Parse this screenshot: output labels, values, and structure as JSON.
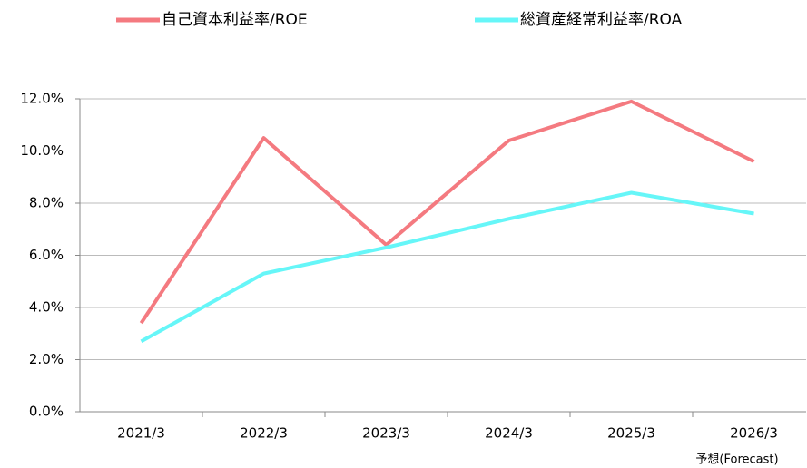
{
  "chart_data": {
    "type": "line",
    "categories": [
      "2021/3",
      "2022/3",
      "2023/3",
      "2024/3",
      "2025/3",
      "2026/3"
    ],
    "series": [
      {
        "name": "自己資本利益率/ROE",
        "color": "#f47a80",
        "values": [
          3.4,
          10.5,
          6.4,
          10.4,
          11.9,
          9.6
        ]
      },
      {
        "name": "総資産経常利益率/ROA",
        "color": "#66f6f8",
        "values": [
          2.7,
          5.3,
          6.3,
          7.4,
          8.4,
          7.6
        ]
      }
    ],
    "ylim": [
      0,
      12
    ],
    "yticks": [
      {
        "value": 0,
        "label": "0.0%"
      },
      {
        "value": 2,
        "label": "2.0%"
      },
      {
        "value": 4,
        "label": "4.0%"
      },
      {
        "value": 6,
        "label": "6.0%"
      },
      {
        "value": 8,
        "label": "8.0%"
      },
      {
        "value": 10,
        "label": "10.0%"
      },
      {
        "value": 12,
        "label": "12.0%"
      }
    ],
    "grid": true,
    "legend": "top",
    "annotation": "予想(Forecast)"
  }
}
